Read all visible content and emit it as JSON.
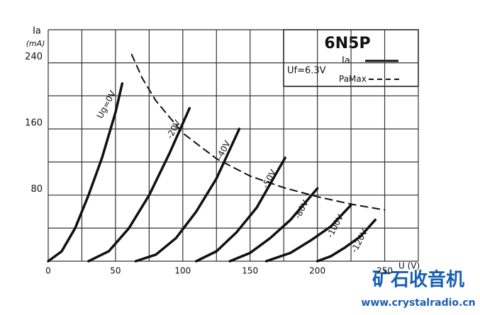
{
  "chart_data": {
    "type": "line",
    "title": "6N5P",
    "subtitle": "Uf=6.3V",
    "y_label": "Ia",
    "y_unit": "(mA)",
    "x_label": "U (V)",
    "xlim": [
      0,
      275
    ],
    "ylim": [
      0,
      280
    ],
    "xticks": [
      0,
      50,
      100,
      150,
      200,
      250
    ],
    "yticks": [
      80,
      160,
      240
    ],
    "xgrid": [
      0,
      25,
      50,
      75,
      100,
      125,
      150,
      175,
      200,
      225,
      250,
      275
    ],
    "ygrid": [
      0,
      40,
      80,
      120,
      160,
      200,
      240,
      280
    ],
    "legend": {
      "solid": "Ia",
      "dashed": "PaMax"
    },
    "color": "#111111",
    "series": [
      {
        "name": "Ug=0V",
        "x": [
          0,
          10,
          20,
          30,
          40,
          50,
          55
        ],
        "values": [
          0,
          12,
          40,
          80,
          125,
          180,
          215
        ]
      },
      {
        "name": "-20V",
        "x": [
          30,
          45,
          60,
          75,
          90,
          105
        ],
        "values": [
          0,
          12,
          40,
          80,
          130,
          185
        ]
      },
      {
        "name": "-40V",
        "x": [
          65,
          80,
          95,
          110,
          125,
          142
        ],
        "values": [
          0,
          8,
          28,
          60,
          100,
          160
        ]
      },
      {
        "name": "-50V",
        "x": [
          110,
          125,
          140,
          155,
          176
        ],
        "values": [
          0,
          12,
          35,
          65,
          125
        ]
      },
      {
        "name": "-80V",
        "x": [
          135,
          150,
          165,
          180,
          200
        ],
        "values": [
          0,
          10,
          28,
          50,
          88
        ]
      },
      {
        "name": "-100V",
        "x": [
          162,
          180,
          195,
          210,
          225
        ],
        "values": [
          0,
          10,
          25,
          42,
          68
        ]
      },
      {
        "name": "-120V",
        "x": [
          200,
          210,
          220,
          232,
          243
        ],
        "values": [
          0,
          6,
          16,
          30,
          50
        ]
      },
      {
        "dashed": true,
        "x": [
          62,
          70,
          80,
          100,
          125,
          150,
          175,
          200,
          225,
          250
        ],
        "values": [
          250,
          221,
          194,
          155,
          124,
          103,
          89,
          78,
          69,
          62
        ]
      }
    ]
  },
  "watermark": {
    "title": "矿石收音机",
    "url": "www.crystalradio.cn"
  }
}
